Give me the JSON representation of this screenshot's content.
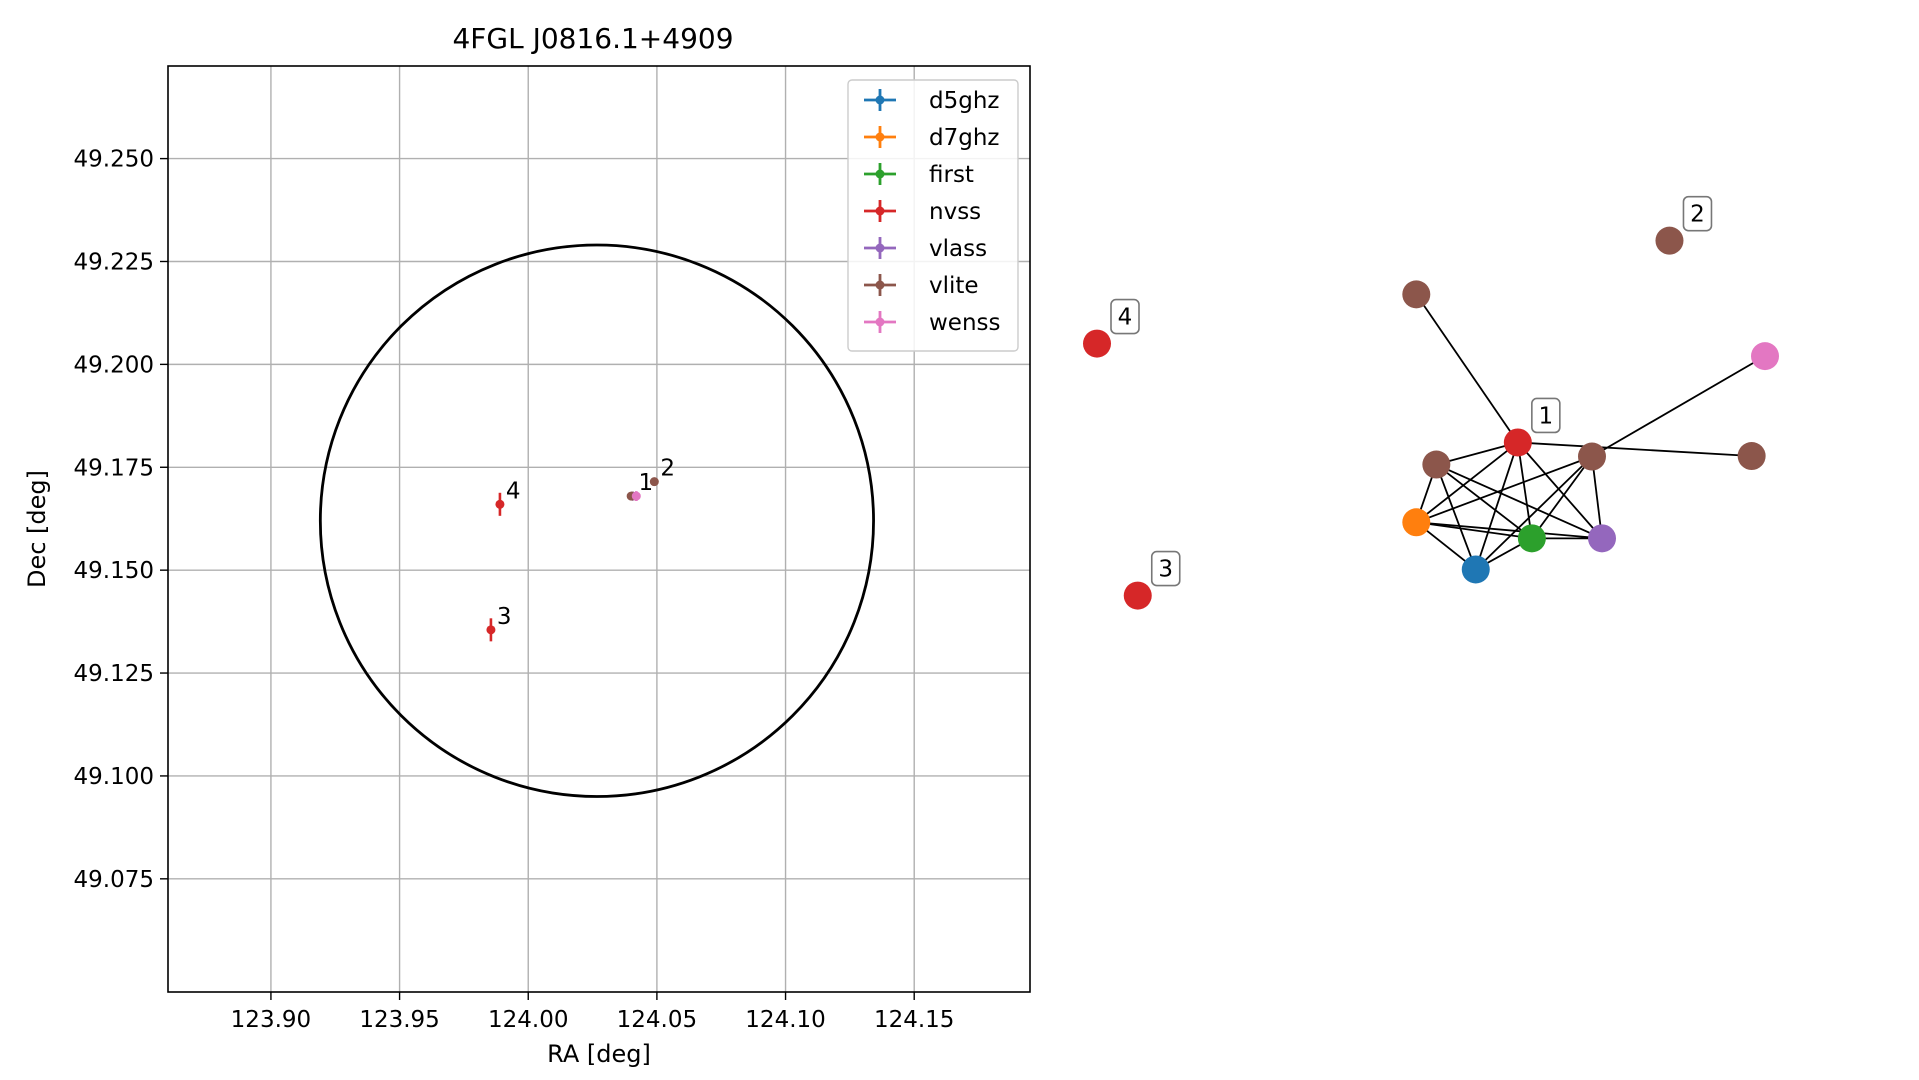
{
  "chart_data": [
    {
      "type": "scatter",
      "title": "4FGL J0816.1+4909",
      "xlabel": "RA [deg]",
      "ylabel": "Dec [deg]",
      "xlim": [
        123.86,
        124.195
      ],
      "ylim": [
        49.0475,
        49.2725
      ],
      "xticks": [
        123.9,
        123.95,
        124.0,
        124.05,
        124.1,
        124.15
      ],
      "xtick_labels": [
        "123.90",
        "123.95",
        "124.00",
        "124.05",
        "124.10",
        "124.15"
      ],
      "yticks": [
        49.075,
        49.1,
        49.125,
        49.15,
        49.175,
        49.2,
        49.225,
        49.25
      ],
      "ytick_labels": [
        "49.075",
        "49.100",
        "49.125",
        "49.150",
        "49.175",
        "49.200",
        "49.225",
        "49.250"
      ],
      "grid": true,
      "legend_position": "top-right",
      "error_ellipse": {
        "center": [
          124.0267,
          49.162
        ],
        "semi_axis_ra": 0.1075,
        "semi_axis_dec": 0.067
      },
      "series": [
        {
          "name": "d5ghz",
          "color": "#1f77b4",
          "points": [
            {
              "x": 124.0405,
              "y": 49.168,
              "yerr": 0.0007
            }
          ]
        },
        {
          "name": "d7ghz",
          "color": "#ff7f0e",
          "points": [
            {
              "x": 124.0405,
              "y": 49.168,
              "yerr": 0.0007
            }
          ]
        },
        {
          "name": "first",
          "color": "#2ca02c",
          "points": [
            {
              "x": 124.0405,
              "y": 49.168,
              "yerr": 0.0007
            }
          ]
        },
        {
          "name": "nvss",
          "color": "#d62728",
          "points": [
            {
              "x": 124.0405,
              "y": 49.168,
              "yerr": 0.001
            },
            {
              "x": 123.989,
              "y": 49.166,
              "yerr": 0.0028
            },
            {
              "x": 123.9855,
              "y": 49.1355,
              "yerr": 0.0028
            }
          ]
        },
        {
          "name": "vlass",
          "color": "#9467bd",
          "points": [
            {
              "x": 124.0405,
              "y": 49.168,
              "yerr": 0.0005
            }
          ]
        },
        {
          "name": "vlite",
          "color": "#8c564b",
          "points": [
            {
              "x": 124.04,
              "y": 49.168,
              "yerr": 0.0008
            },
            {
              "x": 124.049,
              "y": 49.1715,
              "yerr": 0.001
            }
          ]
        },
        {
          "name": "wenss",
          "color": "#e377c2",
          "points": [
            {
              "x": 124.042,
              "y": 49.168,
              "yerr": 0.0012
            }
          ]
        }
      ],
      "annotations": [
        {
          "text": "1",
          "x": 124.0405,
          "y": 49.168
        },
        {
          "text": "2",
          "x": 124.049,
          "y": 49.1715
        },
        {
          "text": "3",
          "x": 123.9855,
          "y": 49.1355
        },
        {
          "text": "4",
          "x": 123.989,
          "y": 49.166
        }
      ]
    },
    {
      "type": "network",
      "title": "",
      "nodes": [
        {
          "id": "vlite_top",
          "color": "#8c564b",
          "x": 0.478,
          "y": 0.812
        },
        {
          "id": "vlite_2",
          "color": "#8c564b",
          "x": 0.857,
          "y": 0.919,
          "label": "2"
        },
        {
          "id": "nvss_4",
          "color": "#d62728",
          "x": 0.0,
          "y": 0.714,
          "label": "4"
        },
        {
          "id": "wenss",
          "color": "#e377c2",
          "x": 1.0,
          "y": 0.689
        },
        {
          "id": "nvss_1",
          "color": "#d62728",
          "x": 0.63,
          "y": 0.517,
          "label": "1"
        },
        {
          "id": "vlite_a",
          "color": "#8c564b",
          "x": 0.741,
          "y": 0.489
        },
        {
          "id": "vlite_right",
          "color": "#8c564b",
          "x": 0.98,
          "y": 0.49
        },
        {
          "id": "vlite_b",
          "color": "#8c564b",
          "x": 0.508,
          "y": 0.473
        },
        {
          "id": "d7ghz",
          "color": "#ff7f0e",
          "x": 0.478,
          "y": 0.358
        },
        {
          "id": "first",
          "color": "#2ca02c",
          "x": 0.651,
          "y": 0.326
        },
        {
          "id": "vlass",
          "color": "#9467bd",
          "x": 0.756,
          "y": 0.326
        },
        {
          "id": "d5ghz",
          "color": "#1f77b4",
          "x": 0.567,
          "y": 0.264
        },
        {
          "id": "nvss_3",
          "color": "#d62728",
          "x": 0.061,
          "y": 0.212,
          "label": "3"
        }
      ],
      "edges": [
        [
          "vlite_top",
          "nvss_1"
        ],
        [
          "wenss",
          "vlite_a"
        ],
        [
          "nvss_1",
          "vlite_right"
        ],
        [
          "nvss_1",
          "vlite_b"
        ],
        [
          "nvss_1",
          "d7ghz"
        ],
        [
          "nvss_1",
          "d5ghz"
        ],
        [
          "nvss_1",
          "first"
        ],
        [
          "nvss_1",
          "vlass"
        ],
        [
          "vlite_a",
          "d7ghz"
        ],
        [
          "vlite_a",
          "d5ghz"
        ],
        [
          "vlite_a",
          "first"
        ],
        [
          "vlite_a",
          "vlass"
        ],
        [
          "vlite_b",
          "d7ghz"
        ],
        [
          "vlite_b",
          "d5ghz"
        ],
        [
          "vlite_b",
          "first"
        ],
        [
          "vlite_b",
          "vlass"
        ],
        [
          "d7ghz",
          "d5ghz"
        ],
        [
          "d7ghz",
          "first"
        ],
        [
          "d7ghz",
          "vlass"
        ],
        [
          "first",
          "d5ghz"
        ],
        [
          "first",
          "vlass"
        ]
      ]
    }
  ]
}
